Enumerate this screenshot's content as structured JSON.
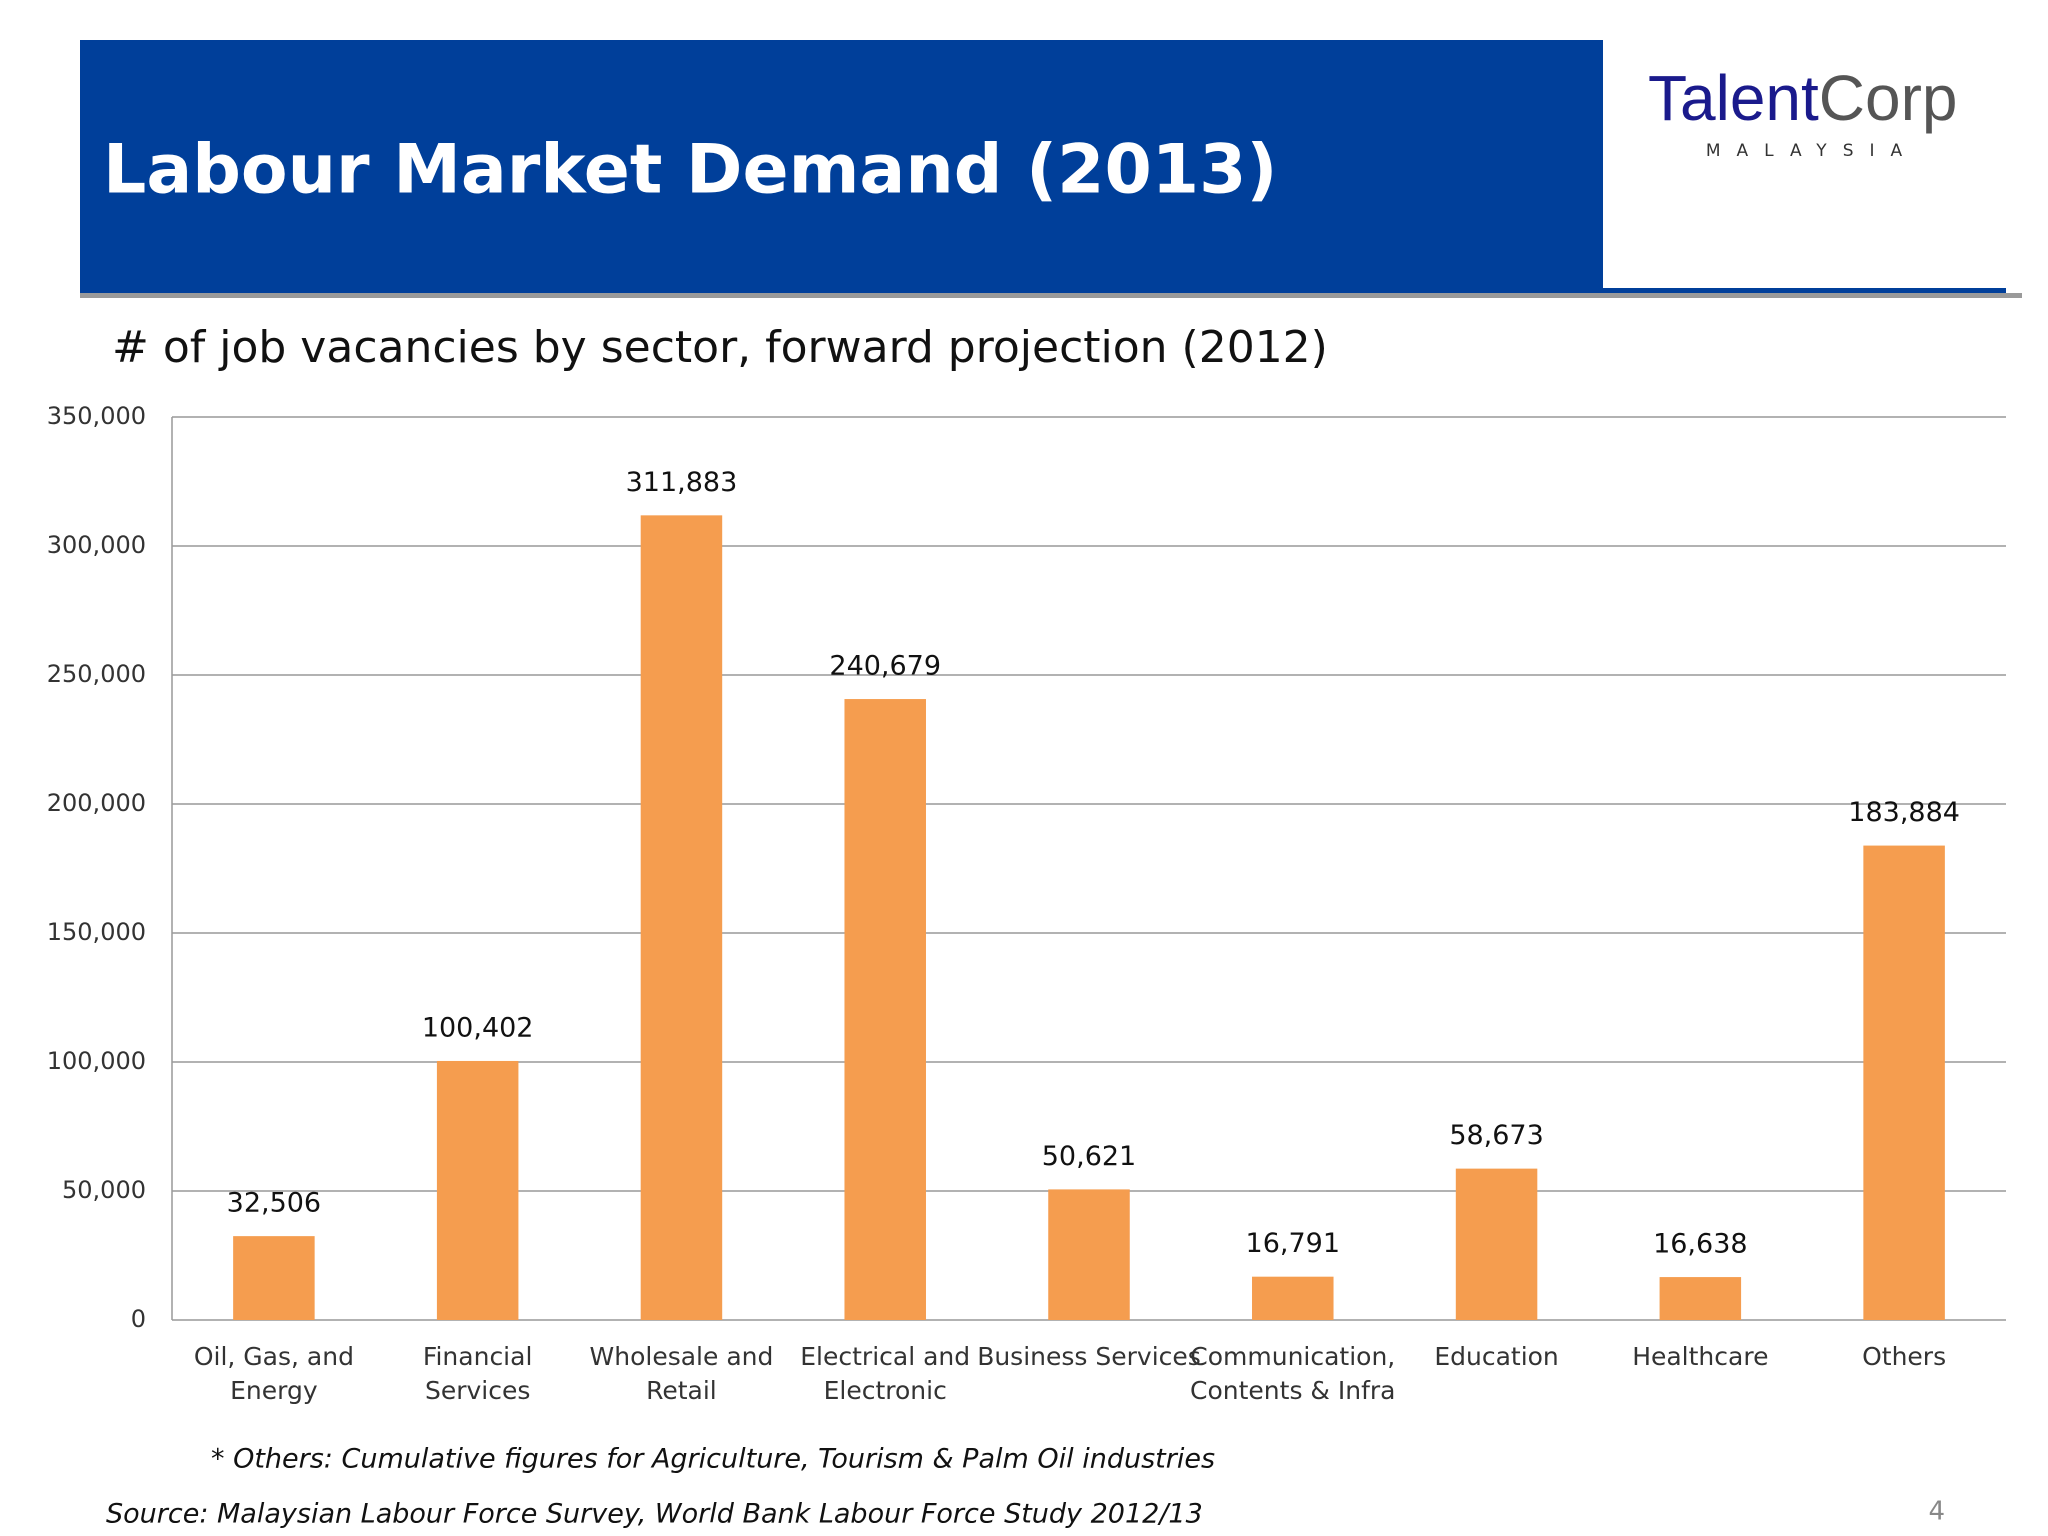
{
  "header": {
    "title": "Labour Market Demand (2013)",
    "logo": {
      "primary": "Talent",
      "secondary": "Corp",
      "tagline": "MALAYSIA"
    }
  },
  "chart_data": {
    "type": "bar",
    "title": "# of job vacancies by sector, forward projection (2012)",
    "categories": [
      [
        "Oil, Gas, and",
        "Energy"
      ],
      [
        "Financial",
        "Services"
      ],
      [
        "Wholesale and",
        "Retail"
      ],
      [
        "Electrical and",
        "Electronic"
      ],
      [
        "Business Services"
      ],
      [
        "Communication,",
        "Contents & Infra"
      ],
      [
        "Education"
      ],
      [
        "Healthcare"
      ],
      [
        "Others"
      ]
    ],
    "values": [
      32506,
      100402,
      311883,
      240679,
      50621,
      16791,
      58673,
      16638,
      183884
    ],
    "value_labels": [
      "32,506",
      "100,402",
      "311,883",
      "240,679",
      "50,621",
      "16,791",
      "58,673",
      "16,638",
      "183,884"
    ],
    "color": "#f59d4f",
    "ylim": [
      0,
      350000
    ],
    "yticks": [
      0,
      {
        "value": 50000,
        "label": "50,000"
      },
      {
        "value": 100000,
        "label": "100,000"
      },
      {
        "value": 150000,
        "label": "150,000"
      },
      {
        "value": 200000,
        "label": "200,000"
      },
      {
        "value": 250000,
        "label": "250,000"
      },
      {
        "value": 300000,
        "label": "300,000"
      },
      {
        "value": 350000,
        "label": "350,000"
      }
    ],
    "grid": true
  },
  "notes": "* Others: Cumulative figures for Agriculture, Tourism & Palm Oil industries",
  "source": "Source: Malaysian Labour Force Survey, World Bank Labour Force Study 2012/13",
  "page_number": 4
}
